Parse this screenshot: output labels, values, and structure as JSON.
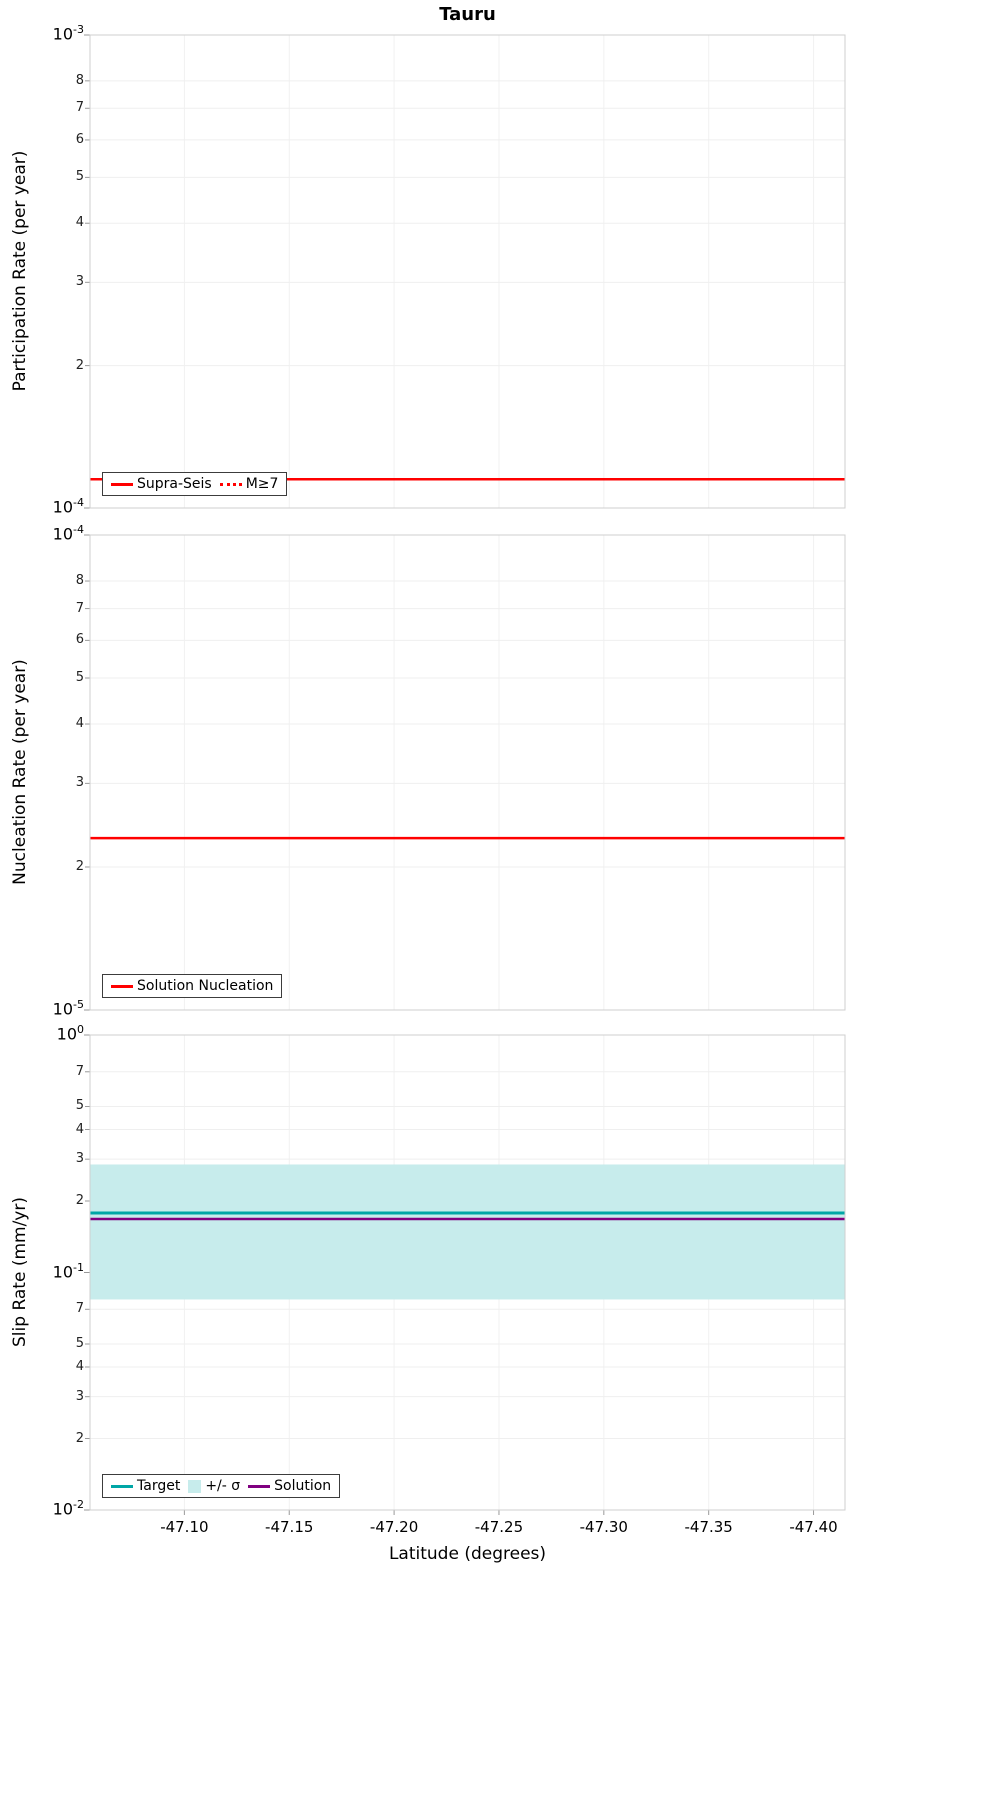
{
  "title": "Tauru",
  "xaxis": {
    "label": "Latitude (degrees)",
    "range": [
      -47.055,
      -47.415
    ],
    "ticks": [
      -47.1,
      -47.15,
      -47.2,
      -47.25,
      -47.3,
      -47.35,
      -47.4
    ]
  },
  "chart_data": [
    {
      "type": "line",
      "name": "participation",
      "ylabel": "Participation Rate (per year)",
      "yscale": "log",
      "ylim": [
        0.0001,
        0.001
      ],
      "minor_labels": [
        8,
        7,
        6,
        5,
        4,
        3,
        2
      ],
      "series": [
        {
          "name": "Supra-Seis",
          "dash": "solid",
          "color": "#ff0000",
          "y": 0.000115
        },
        {
          "name": "M≥7",
          "dash": "dot",
          "color": "#ff0000",
          "y": 0.000115
        }
      ]
    },
    {
      "type": "line",
      "name": "nucleation",
      "ylabel": "Nucleation Rate (per year)",
      "yscale": "log",
      "ylim": [
        1e-05,
        0.0001
      ],
      "minor_labels": [
        8,
        7,
        6,
        5,
        4,
        3,
        2
      ],
      "series": [
        {
          "name": "Solution Nucleation",
          "dash": "solid",
          "color": "#ff0000",
          "y": 2.3e-05
        }
      ]
    },
    {
      "type": "line",
      "name": "slip-rate",
      "ylabel": "Slip Rate (mm/yr)",
      "yscale": "log",
      "ylim": [
        0.01,
        1.0
      ],
      "minor_labels": [
        7,
        5,
        4,
        3,
        2
      ],
      "band": {
        "name": "+/- σ",
        "color": "#c7ecec",
        "lo": 0.077,
        "hi": 0.285
      },
      "series": [
        {
          "name": "Target",
          "dash": "solid",
          "color": "#00a6a6",
          "y": 0.178
        },
        {
          "name": "Solution",
          "dash": "solid",
          "color": "#800080",
          "y": 0.168
        }
      ]
    }
  ],
  "colors": {
    "grid_h": "#e8e8e8",
    "grid_v": "#f1f1f1",
    "frame": "#cfcfcf",
    "tick": "#999999"
  }
}
